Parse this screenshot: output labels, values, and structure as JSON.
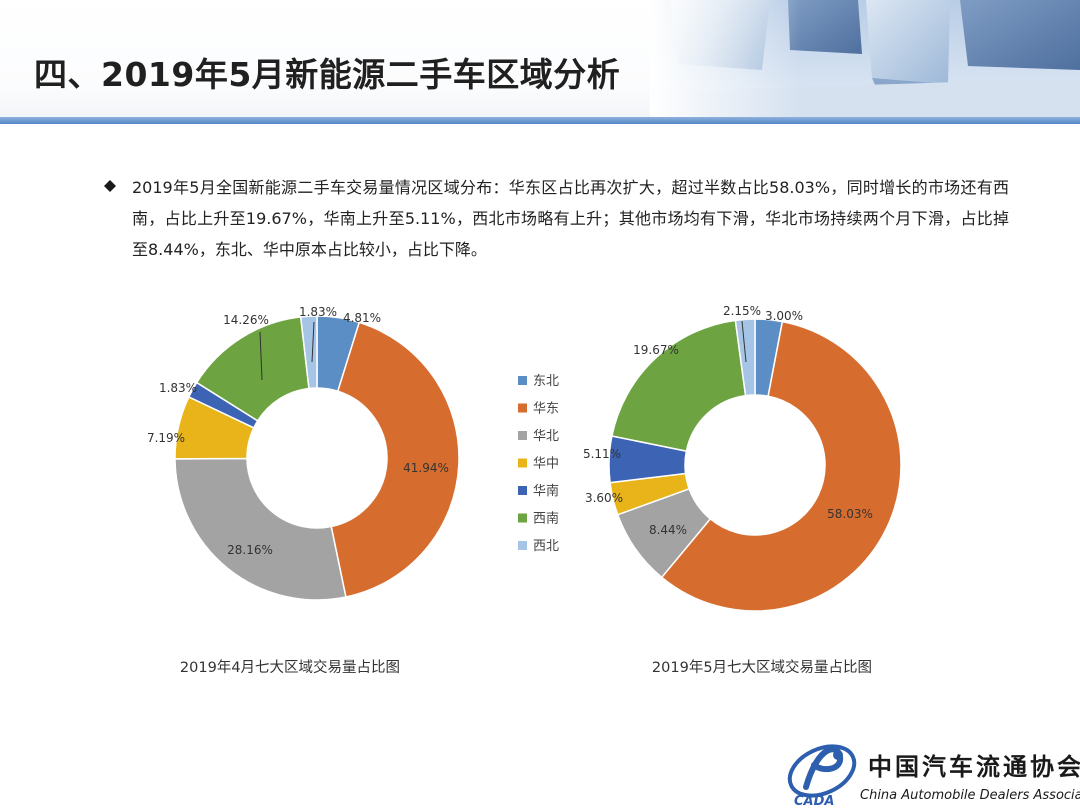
{
  "header": {
    "title": "四、2019年5月新能源二手车区域分析"
  },
  "bullet": {
    "text": "2019年5月全国新能源二手车交易量情况区域分布：华东区占比再次扩大，超过半数占比58.03%，同时增长的市场还有西南，占比上升至19.67%，华南上升至5.11%，西北市场略有上升；其他市场均有下滑，华北市场持续两个月下滑，占比掉至8.44%，东北、华中原本占比较小，占比下降。"
  },
  "legend": {
    "items": [
      {
        "label": "东北",
        "color": "#5b8ec4"
      },
      {
        "label": "华东",
        "color": "#d66d2e"
      },
      {
        "label": "华北",
        "color": "#a3a3a3"
      },
      {
        "label": "华中",
        "color": "#e8b41a"
      },
      {
        "label": "华南",
        "color": "#3d63b5"
      },
      {
        "label": "西南",
        "color": "#6da340"
      },
      {
        "label": "西北",
        "color": "#a6c5e6"
      }
    ]
  },
  "chart_data": [
    {
      "type": "pie",
      "title": "2019年4月七大区域交易量占比图",
      "categories": [
        "东北",
        "华东",
        "华北",
        "华中",
        "华南",
        "西南",
        "西北"
      ],
      "values": [
        4.81,
        41.94,
        28.16,
        7.19,
        1.83,
        14.26,
        1.83
      ],
      "labels": [
        "4.81%",
        "41.94%",
        "28.16%",
        "7.19%",
        "1.83%",
        "14.26%",
        "1.83%"
      ],
      "donut": true
    },
    {
      "type": "pie",
      "title": "2019年5月七大区域交易量占比图",
      "categories": [
        "东北",
        "华东",
        "华北",
        "华中",
        "华南",
        "西南",
        "西北"
      ],
      "values": [
        3.0,
        58.03,
        8.44,
        3.6,
        5.11,
        19.67,
        2.15
      ],
      "labels": [
        "3.00%",
        "58.03%",
        "8.44%",
        "3.60%",
        "5.11%",
        "19.67%",
        "2.15%"
      ],
      "donut": true
    }
  ],
  "logo": {
    "name_cn": "中国汽车流通协会",
    "name_en": "China Automobile Dealers Association",
    "mark": "CADA"
  }
}
